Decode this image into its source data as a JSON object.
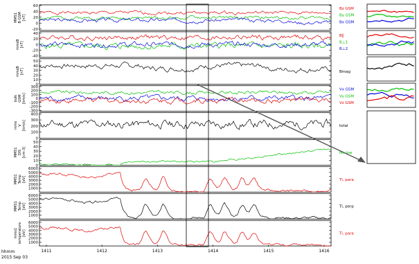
{
  "chart_data": {
    "type": "line",
    "x_ticks": [
      "1411",
      "1412",
      "1413",
      "1414",
      "1415",
      "1416"
    ],
    "x_footer": [
      "hhmm",
      "2015 Sep 03"
    ],
    "panels": [
      {
        "id": "b-gsm",
        "ylabel": [
          "MMS1",
          "B GSM",
          "[nT]"
        ],
        "yticks": [
          -20,
          0,
          20,
          40,
          60
        ],
        "ylim": [
          -25,
          62
        ],
        "series": [
          {
            "label": "Bz GSM",
            "color": "#e00000",
            "base": 35,
            "amp": 5,
            "seed": 1
          },
          {
            "label": "By GSM",
            "color": "#00c000",
            "base": 18,
            "amp": 5,
            "seed": 2
          },
          {
            "label": "Bx GSM",
            "color": "#0000e0",
            "base": 10,
            "amp": 6,
            "seed": 3,
            "drop": true
          }
        ]
      },
      {
        "id": "b-mfa",
        "ylabel": [
          "mmsB",
          "[nT]"
        ],
        "yticks": [
          -40,
          -20,
          0,
          20,
          40
        ],
        "ylim": [
          -45,
          45
        ],
        "series": [
          {
            "label": "B∥",
            "color": "#e00000",
            "base": 25,
            "amp": 8,
            "seed": 4
          },
          {
            "label": "B⊥1",
            "color": "#00c000",
            "base": -5,
            "amp": 10,
            "seed": 5
          },
          {
            "label": "B⊥2",
            "color": "#0000e0",
            "base": 0,
            "amp": 8,
            "seed": 6
          }
        ]
      },
      {
        "id": "bmag",
        "ylabel": [
          "mmsB",
          "[nT]"
        ],
        "yticks": [
          0,
          10,
          20,
          30,
          40,
          50
        ],
        "ylim": [
          0,
          55
        ],
        "series": [
          {
            "label": "Bmag",
            "color": "#000000",
            "base": 40,
            "amp": 5,
            "seed": 7,
            "sag": true
          }
        ]
      },
      {
        "id": "v-gsm",
        "ylabel": [
          "bulk",
          "GSM",
          "[km/s]"
        ],
        "yticks": [
          -300,
          -200,
          -100,
          0,
          100,
          200,
          300
        ],
        "ylim": [
          -320,
          320
        ],
        "series": [
          {
            "label": "Vx GSM",
            "color": "#0000e0",
            "base": 0,
            "amp": 60,
            "seed": 8
          },
          {
            "label": "Vy GSM",
            "color": "#00c000",
            "base": 150,
            "amp": 40,
            "seed": 9
          },
          {
            "label": "Vz GSM",
            "color": "#e00000",
            "base": -50,
            "amp": 60,
            "seed": 10
          }
        ]
      },
      {
        "id": "vtot",
        "ylabel": [
          "mms",
          "V",
          "[km/s]"
        ],
        "yticks": [
          0,
          100,
          200,
          300,
          400
        ],
        "ylim": [
          0,
          420
        ],
        "series": [
          {
            "label": "total",
            "color": "#000000",
            "base": 230,
            "amp": 60,
            "seed": 11
          }
        ]
      },
      {
        "id": "density",
        "ylabel": [
          "MMS1",
          "DIS",
          "[cm-3]"
        ],
        "yticks": [
          0,
          10,
          20,
          30,
          40,
          50
        ],
        "ylim": [
          0,
          55
        ],
        "series": [
          {
            "label": "Ni, low",
            "color": "#00c000",
            "base": 8,
            "amp": 2,
            "seed": 12,
            "ramp": true
          }
        ]
      },
      {
        "id": "tpara",
        "ylabel": [
          "MMS1",
          "Temp",
          "[eV]"
        ],
        "yticks": [
          1000,
          2000,
          3000,
          4000,
          5000,
          6000
        ],
        "ylim": [
          0,
          6500
        ],
        "series": [
          {
            "label": "Ti, para",
            "color": "#e00000",
            "base": 5000,
            "amp": 300,
            "seed": 13,
            "peaks": true
          }
        ]
      },
      {
        "id": "tperp",
        "ylabel": [
          "MMS1",
          "Temp",
          "[eV]"
        ],
        "yticks": [
          1000,
          2000,
          3000,
          4000,
          5000,
          6000
        ],
        "ylim": [
          0,
          6500
        ],
        "series": [
          {
            "label": "Ti, perp",
            "color": "#000000",
            "base": 5500,
            "amp": 300,
            "seed": 14,
            "peaks": true
          }
        ]
      },
      {
        "id": "temp",
        "ylabel": [
          "mms1",
          "temperature",
          "[eV]"
        ],
        "yticks": [
          1000,
          2000,
          3000,
          4000,
          5000,
          6000
        ],
        "ylim": [
          0,
          6500
        ],
        "series": [
          {
            "label": "Ti, para",
            "color": "#e00000",
            "base": 5000,
            "amp": 300,
            "seed": 15,
            "peaks": true
          }
        ]
      }
    ]
  }
}
